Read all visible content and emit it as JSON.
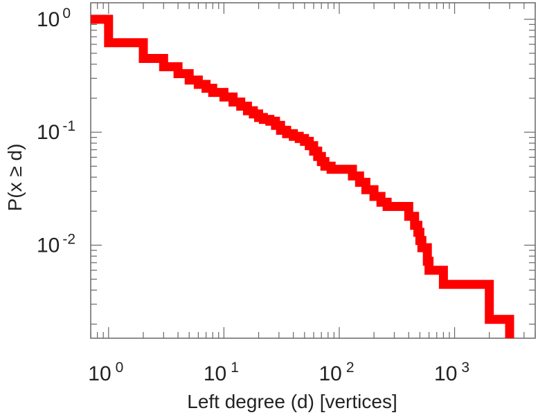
{
  "chart_data": {
    "type": "line",
    "title": "",
    "xlabel": "Left degree (d) [vertices]",
    "ylabel": "P(x ≥ d)",
    "xscale": "log",
    "yscale": "log",
    "xlim": [
      0.7,
      5000
    ],
    "ylim": [
      0.0015,
      1.4
    ],
    "x_ticks": [
      {
        "value": 1,
        "base": "10",
        "exp": "0"
      },
      {
        "value": 10,
        "base": "10",
        "exp": "1"
      },
      {
        "value": 100,
        "base": "10",
        "exp": "2"
      },
      {
        "value": 1000,
        "base": "10",
        "exp": "3"
      }
    ],
    "y_ticks": [
      {
        "value": 1,
        "base": "10",
        "exp": "0"
      },
      {
        "value": 0.1,
        "base": "10",
        "exp": "-1"
      },
      {
        "value": 0.01,
        "base": "10",
        "exp": "-2"
      }
    ],
    "grid": false,
    "legend": "none",
    "series": [
      {
        "color": "#ff0000",
        "step": "post",
        "x": [
          0.7,
          1,
          2,
          3,
          4,
          5,
          6,
          7,
          8,
          10,
          12,
          14,
          16,
          18,
          20,
          22,
          25,
          28,
          31,
          35,
          40,
          45,
          50,
          55,
          60,
          65,
          70,
          75,
          85,
          130,
          150,
          170,
          200,
          230,
          260,
          300,
          400,
          450,
          480,
          500,
          520,
          580,
          600,
          800,
          2000,
          3000
        ],
        "y": [
          1.0,
          0.62,
          0.45,
          0.38,
          0.33,
          0.29,
          0.265,
          0.245,
          0.225,
          0.205,
          0.185,
          0.17,
          0.155,
          0.145,
          0.135,
          0.13,
          0.125,
          0.115,
          0.104,
          0.097,
          0.092,
          0.088,
          0.083,
          0.076,
          0.068,
          0.061,
          0.055,
          0.05,
          0.047,
          0.041,
          0.036,
          0.031,
          0.027,
          0.024,
          0.022,
          0.022,
          0.018,
          0.015,
          0.013,
          0.011,
          0.0095,
          0.0072,
          0.006,
          0.0045,
          0.0022,
          0.0015
        ]
      }
    ]
  }
}
